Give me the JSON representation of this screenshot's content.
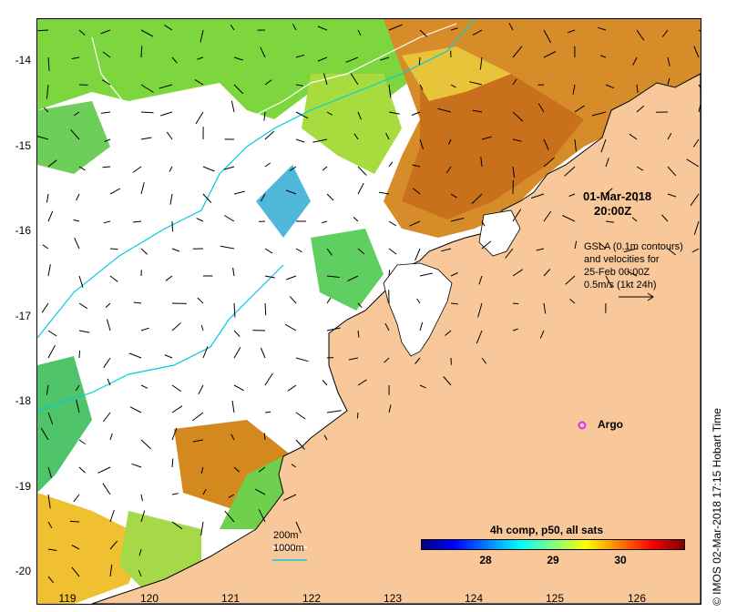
{
  "axes": {
    "lat_ticks": [
      "-14",
      "-15",
      "-16",
      "-17",
      "-18",
      "-19",
      "-20"
    ],
    "lon_ticks": [
      "119",
      "120",
      "121",
      "122",
      "123",
      "124",
      "125",
      "126"
    ],
    "lon_range": [
      118.6,
      126.75
    ],
    "lat_range": [
      -13.55,
      -20.1
    ]
  },
  "map": {
    "land_color": "#f9c89a",
    "no_data_color": "#ffffff",
    "contour_200m_color": "#ffffff",
    "contour_1000m_color": "#00ccdd"
  },
  "annotation": {
    "date": "01-Mar-2018",
    "time": "20:00Z",
    "gsla_line1": "GSLA (0.1m contours)",
    "gsla_line2": "and velocities for",
    "gsla_line3": "25-Feb 00:00Z",
    "gsla_line4": "0.5m/s (1kt 24h)"
  },
  "legend": {
    "contour_200m": "200m",
    "contour_1000m": "1000m",
    "argo_label": "Argo",
    "argo_color": "#cc33ff"
  },
  "colorbar": {
    "title": "4h comp, p50, all sats",
    "ticks": [
      "28",
      "29",
      "30"
    ],
    "range": [
      27.0,
      30.9
    ],
    "colors": [
      "#00007f",
      "#0000ff",
      "#0080ff",
      "#00ffff",
      "#80ff80",
      "#ffff00",
      "#ff8000",
      "#ff0000",
      "#7f0000"
    ]
  },
  "footer": "© IMOS 02-Mar-2018 17:15 Hobart Time"
}
